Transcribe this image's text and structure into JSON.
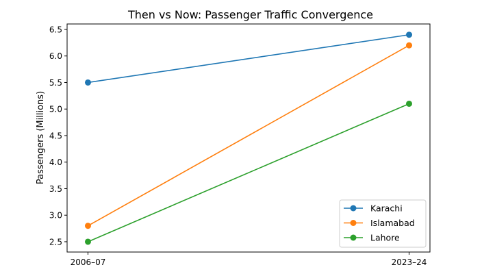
{
  "chart_data": {
    "type": "line",
    "title": "Then vs Now: Passenger Traffic Convergence",
    "xlabel": "",
    "ylabel": "Passengers (Millions)",
    "categories": [
      "2006–07",
      "2023–24"
    ],
    "yticks": [
      "2.5",
      "3.0",
      "3.5",
      "4.0",
      "4.5",
      "5.0",
      "5.5",
      "6.0",
      "6.5"
    ],
    "ylim": [
      2.306,
      6.603
    ],
    "legend_position": "lower-right",
    "grid": false,
    "series": [
      {
        "name": "Karachi",
        "values": [
          5.5,
          6.4
        ],
        "color": "#1f77b4"
      },
      {
        "name": "Islamabad",
        "values": [
          2.8,
          6.2
        ],
        "color": "#ff7f0e"
      },
      {
        "name": "Lahore",
        "values": [
          2.5,
          5.1
        ],
        "color": "#2ca02c"
      }
    ]
  }
}
